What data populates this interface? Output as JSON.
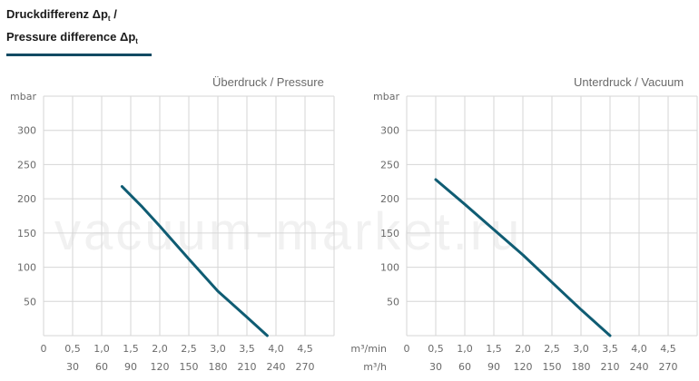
{
  "header": {
    "title_line1_main": "Druckdifferenz Δp",
    "title_line1_sub": "t",
    "title_line1_tail": " /",
    "title_line2_main": "Pressure difference Δp",
    "title_line2_sub": "t"
  },
  "watermark": "vacuum-market.ru",
  "colors": {
    "curve": "#0f5c73",
    "grid": "#d6d6d6",
    "axis_text": "#6a6a6a",
    "rule": "#124a63"
  },
  "chart_data": [
    {
      "type": "line",
      "title": "Überdruck / Pressure",
      "ylabel": "mbar",
      "ylim": [
        0,
        350
      ],
      "yticks": [
        50,
        100,
        150,
        200,
        250,
        300
      ],
      "xlim": [
        0,
        5
      ],
      "xticks_m3min": [
        "0",
        "0,5",
        "1,0",
        "1,5",
        "2,0",
        "2,5",
        "3,0",
        "3,5",
        "4,0",
        "4,5"
      ],
      "xticks_m3h": [
        "30",
        "60",
        "90",
        "120",
        "150",
        "180",
        "210",
        "240",
        "270"
      ],
      "x_unit_1": "",
      "x_unit_2": "",
      "grid": true,
      "series": [
        {
          "x": [
            1.35,
            1.7,
            2.0,
            2.5,
            3.0,
            3.5,
            3.85
          ],
          "y": [
            218,
            188,
            160,
            112,
            65,
            27,
            0
          ]
        }
      ]
    },
    {
      "type": "line",
      "title": "Unterdruck / Vacuum",
      "ylabel": "mbar",
      "ylim": [
        0,
        350
      ],
      "yticks": [
        50,
        100,
        150,
        200,
        250,
        300
      ],
      "xlim": [
        0,
        5
      ],
      "xticks_m3min": [
        "0",
        "0,5",
        "1,0",
        "1,5",
        "2,0",
        "2,5",
        "3,0",
        "3,5",
        "4,0",
        "4,5"
      ],
      "xticks_m3h": [
        "30",
        "60",
        "90",
        "120",
        "150",
        "180",
        "210",
        "240",
        "270"
      ],
      "x_unit_1": "m³/min",
      "x_unit_2": "m³/h",
      "grid": true,
      "series": [
        {
          "x": [
            0.5,
            1.0,
            1.5,
            2.0,
            2.5,
            3.0,
            3.5
          ],
          "y": [
            228,
            192,
            155,
            118,
            78,
            38,
            0
          ]
        }
      ]
    }
  ]
}
